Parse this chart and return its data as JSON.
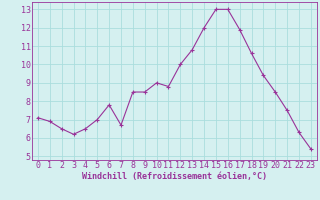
{
  "x": [
    0,
    1,
    2,
    3,
    4,
    5,
    6,
    7,
    8,
    9,
    10,
    11,
    12,
    13,
    14,
    15,
    16,
    17,
    18,
    19,
    20,
    21,
    22,
    23
  ],
  "y": [
    7.1,
    6.9,
    6.5,
    6.2,
    6.5,
    7.0,
    7.8,
    6.7,
    8.5,
    8.5,
    9.0,
    8.8,
    10.0,
    10.8,
    12.0,
    13.0,
    13.0,
    11.9,
    10.6,
    9.4,
    8.5,
    7.5,
    6.3,
    5.4
  ],
  "line_color": "#993399",
  "marker": "+",
  "marker_size": 3,
  "bg_color": "#d5f0f0",
  "grid_color": "#aadddd",
  "xlabel": "Windchill (Refroidissement éolien,°C)",
  "xlabel_color": "#993399",
  "xlabel_fontsize": 6.0,
  "tick_color": "#993399",
  "tick_fontsize": 6.0,
  "ylim": [
    4.8,
    13.4
  ],
  "xlim": [
    -0.5,
    23.5
  ],
  "yticks": [
    5,
    6,
    7,
    8,
    9,
    10,
    11,
    12,
    13
  ],
  "xticks": [
    0,
    1,
    2,
    3,
    4,
    5,
    6,
    7,
    8,
    9,
    10,
    11,
    12,
    13,
    14,
    15,
    16,
    17,
    18,
    19,
    20,
    21,
    22,
    23
  ]
}
